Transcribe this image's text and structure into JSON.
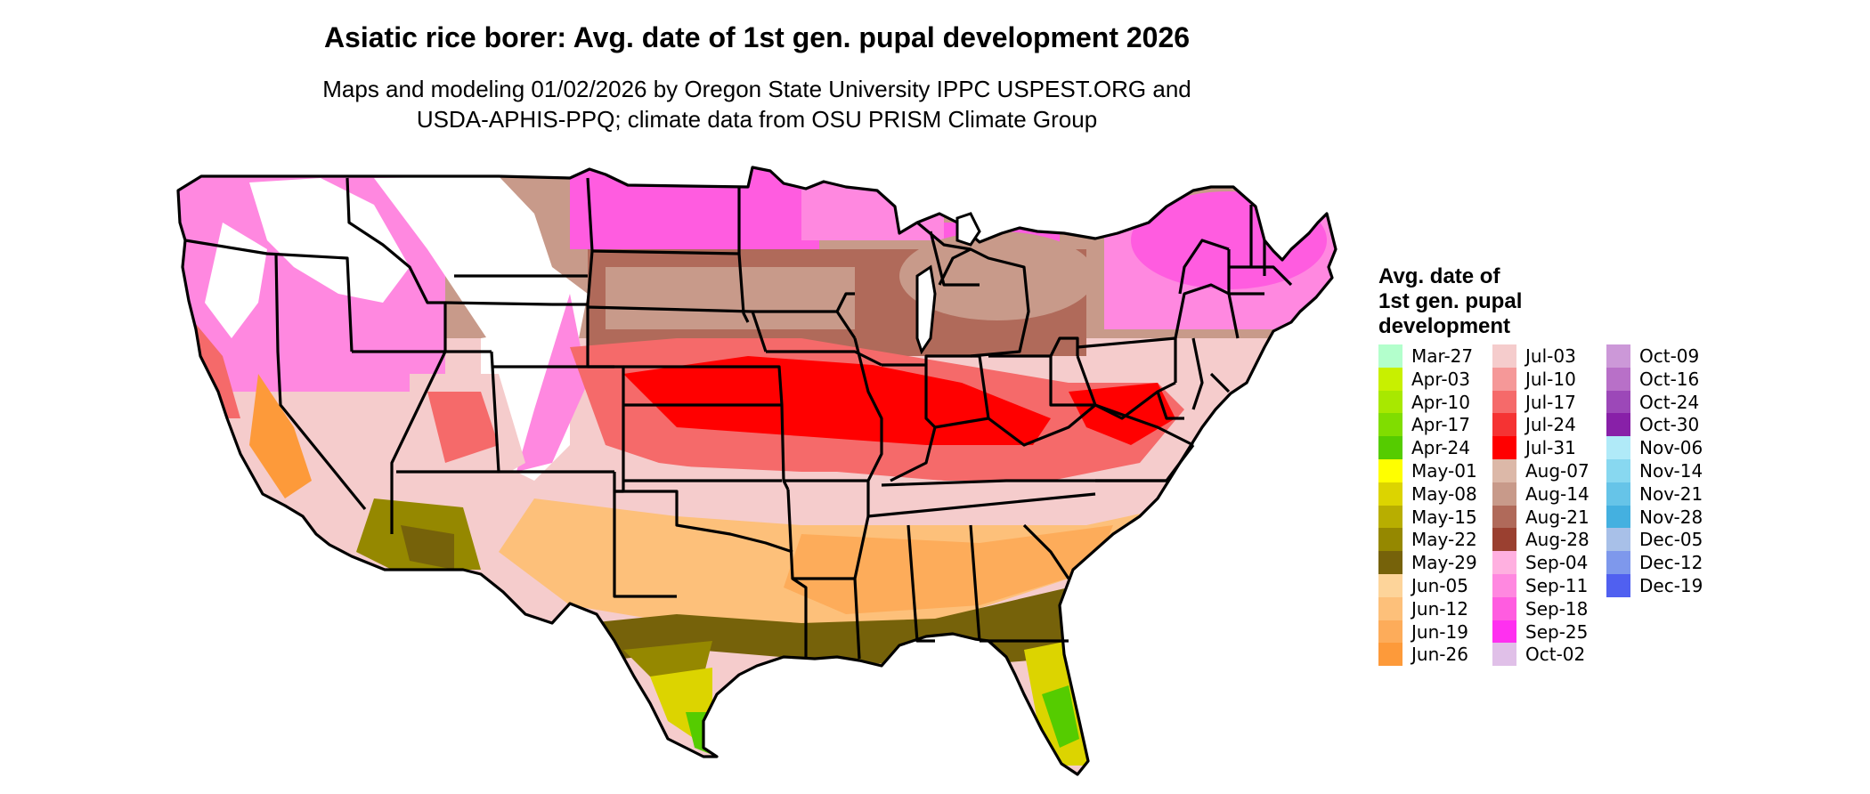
{
  "title": "Asiatic rice borer: Avg. date of 1st gen. pupal development 2026",
  "subtitle_line1": "Maps and modeling 01/02/2026 by Oregon State University IPPC USPEST.ORG and",
  "subtitle_line2": "USDA-APHIS-PPQ; climate data from OSU PRISM Climate Group",
  "legend": {
    "title_line1": "Avg. date of",
    "title_line2": "1st gen. pupal",
    "title_line3": "development",
    "items": [
      {
        "label": "Mar-27",
        "color": "#b3ffcc"
      },
      {
        "label": "Apr-03",
        "color": "#c8f000"
      },
      {
        "label": "Apr-10",
        "color": "#a8e800"
      },
      {
        "label": "Apr-17",
        "color": "#80dd00"
      },
      {
        "label": "Apr-24",
        "color": "#55cc00"
      },
      {
        "label": "May-01",
        "color": "#ffff00"
      },
      {
        "label": "May-08",
        "color": "#dcd400"
      },
      {
        "label": "May-15",
        "color": "#b8ae00"
      },
      {
        "label": "May-22",
        "color": "#958800"
      },
      {
        "label": "May-29",
        "color": "#76620a"
      },
      {
        "label": "Jun-05",
        "color": "#fdd49a"
      },
      {
        "label": "Jun-12",
        "color": "#fdc07a"
      },
      {
        "label": "Jun-19",
        "color": "#fdac5a"
      },
      {
        "label": "Jun-26",
        "color": "#fd9a3a"
      },
      {
        "label": "Jul-03",
        "color": "#f5cccc"
      },
      {
        "label": "Jul-10",
        "color": "#f59898"
      },
      {
        "label": "Jul-17",
        "color": "#f56a6a"
      },
      {
        "label": "Jul-24",
        "color": "#f53333"
      },
      {
        "label": "Jul-31",
        "color": "#ff0000"
      },
      {
        "label": "Aug-07",
        "color": "#dcb8a8"
      },
      {
        "label": "Aug-14",
        "color": "#c89a8a"
      },
      {
        "label": "Aug-21",
        "color": "#b06a5a"
      },
      {
        "label": "Aug-28",
        "color": "#9a4030"
      },
      {
        "label": "Sep-04",
        "color": "#ffb0e0"
      },
      {
        "label": "Sep-11",
        "color": "#ff88e0"
      },
      {
        "label": "Sep-18",
        "color": "#ff5ce0"
      },
      {
        "label": "Sep-25",
        "color": "#ff30f0"
      },
      {
        "label": "Oct-02",
        "color": "#e0c0e8"
      },
      {
        "label": "Oct-09",
        "color": "#cc98d8"
      },
      {
        "label": "Oct-16",
        "color": "#b870c8"
      },
      {
        "label": "Oct-24",
        "color": "#9c48b8"
      },
      {
        "label": "Oct-30",
        "color": "#8820a8"
      },
      {
        "label": "Nov-06",
        "color": "#b0eaf8"
      },
      {
        "label": "Nov-14",
        "color": "#88d8f0"
      },
      {
        "label": "Nov-21",
        "color": "#66c4e8"
      },
      {
        "label": "Nov-28",
        "color": "#44b0e0"
      },
      {
        "label": "Dec-05",
        "color": "#a8c0e8"
      },
      {
        "label": "Dec-12",
        "color": "#7e98ec"
      },
      {
        "label": "Dec-19",
        "color": "#5060f0"
      }
    ]
  }
}
